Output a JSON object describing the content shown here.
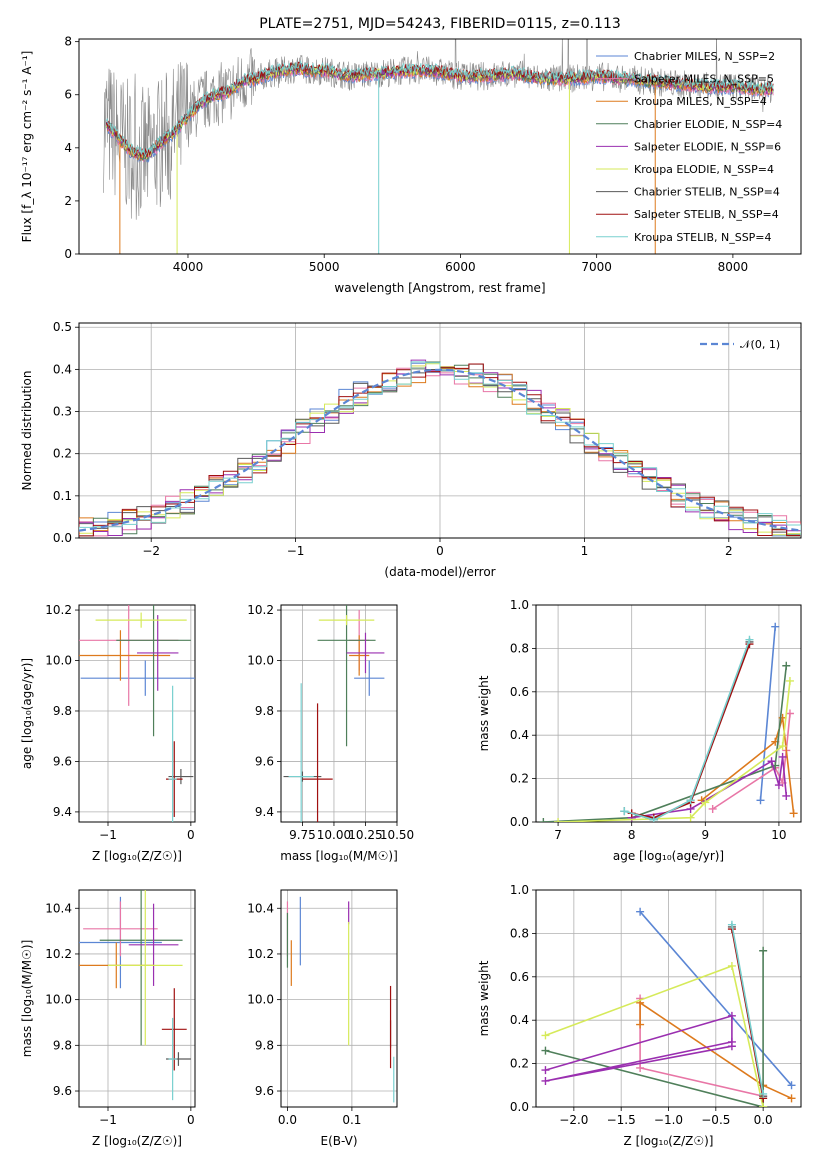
{
  "figure": {
    "title": "PLATE=2751, MJD=54243, FIBERID=0115, z=0.113"
  },
  "colors": {
    "Chabrier MILES": "#5b86d4",
    "Salpeter MILES": "#e876a6",
    "Kroupa MILES": "#dd7a1d",
    "Chabrier ELODIE": "#4f7f5a",
    "Salpeter ELODIE": "#9a2fb0",
    "Kroupa ELODIE": "#d6ea5a",
    "Chabrier STELIB": "#5a5a5a",
    "Salpeter STELIB": "#a01010",
    "Kroupa STELIB": "#78d0cf",
    "data": "#888888",
    "gaussian": "#5b86d4"
  },
  "chart_data": [
    {
      "id": "spectrum",
      "type": "line",
      "xlabel": "wavelength [Angstrom, rest frame]",
      "ylabel": "Flux [f_λ 10⁻¹⁷ erg cm⁻² s⁻¹ A⁻¹]",
      "xlim": [
        3200,
        8500
      ],
      "ylim": [
        0,
        8.1
      ],
      "xticks": [
        4000,
        5000,
        6000,
        7000,
        8000
      ],
      "yticks": [
        0,
        2,
        4,
        6,
        8
      ],
      "grid": false,
      "legend_position": "top-right",
      "legend": [
        "Chabrier MILES, N_SSP=2",
        "Salpeter MILES, N_SSP=5",
        "Kroupa MILES, N_SSP=4",
        "Chabrier ELODIE, N_SSP=4",
        "Salpeter ELODIE, N_SSP=6",
        "Kroupa ELODIE, N_SSP=4",
        "Chabrier STELIB, N_SSP=4",
        "Salpeter STELIB, N_SSP=4",
        "Kroupa STELIB, N_SSP=4"
      ],
      "continuum": {
        "x": [
          3400,
          3500,
          3600,
          3700,
          3800,
          3900,
          4000,
          4100,
          4200,
          4300,
          4400,
          4500,
          4600,
          4700,
          4800,
          4900,
          5000,
          5200,
          5400,
          5600,
          5800,
          6000,
          6200,
          6400,
          6600,
          6800,
          7000,
          7200,
          7400,
          7600,
          7800,
          8000,
          8200,
          8300
        ],
        "y": [
          4.9,
          4.3,
          3.8,
          3.7,
          4.2,
          4.6,
          5.2,
          5.7,
          6.0,
          6.1,
          6.5,
          6.6,
          6.8,
          6.9,
          7.0,
          6.9,
          6.9,
          6.7,
          6.8,
          6.9,
          6.9,
          6.7,
          6.7,
          6.8,
          6.6,
          6.6,
          6.7,
          6.6,
          6.5,
          6.4,
          6.3,
          6.3,
          6.2,
          6.2
        ]
      }
    },
    {
      "id": "residuals",
      "type": "line",
      "xlabel": "(data-model)/error",
      "ylabel": "Normed distribution",
      "xlim": [
        -2.5,
        2.5
      ],
      "ylim": [
        0,
        0.51
      ],
      "xticks": [
        -2,
        -1,
        0,
        1,
        2
      ],
      "yticks": [
        0.0,
        0.1,
        0.2,
        0.3,
        0.4,
        0.5
      ],
      "grid": true,
      "legend_position": "top-right",
      "legend": [
        "𝒩(0, 1)"
      ]
    },
    {
      "id": "age-vs-z",
      "type": "scatter",
      "xlabel": "Z [log₁₀(Z/Z☉)]",
      "ylabel": "age  [log₁₀(age/yr)]",
      "xlim": [
        -1.35,
        0.05
      ],
      "ylim": [
        9.36,
        10.22
      ],
      "xticks": [
        -1,
        0
      ],
      "yticks": [
        9.4,
        9.6,
        9.8,
        10.0,
        10.2
      ],
      "grid": true,
      "points": [
        {
          "series": "Chabrier MILES",
          "x": -0.55,
          "y": 9.93,
          "xerr": 0.78,
          "yerr": 0.07
        },
        {
          "series": "Salpeter MILES",
          "x": -0.75,
          "y": 10.08,
          "xerr": 0.6,
          "yerr": 0.26
        },
        {
          "series": "Kroupa MILES",
          "x": -0.85,
          "y": 10.02,
          "xerr": 0.6,
          "yerr": 0.1
        },
        {
          "series": "Chabrier ELODIE",
          "x": -0.45,
          "y": 10.08,
          "xerr": 0.45,
          "yerr": 0.38
        },
        {
          "series": "Salpeter ELODIE",
          "x": -0.4,
          "y": 10.03,
          "xerr": 0.25,
          "yerr": 0.15
        },
        {
          "series": "Kroupa ELODIE",
          "x": -0.6,
          "y": 10.16,
          "xerr": 0.55,
          "yerr": 0.03
        },
        {
          "series": "Chabrier STELIB",
          "x": -0.12,
          "y": 9.54,
          "xerr": 0.15,
          "yerr": 0.03
        },
        {
          "series": "Salpeter STELIB",
          "x": -0.2,
          "y": 9.53,
          "xerr": 0.1,
          "yerr": 0.15
        },
        {
          "series": "Kroupa STELIB",
          "x": -0.22,
          "y": 9.53,
          "xerr": 0.05,
          "yerr": 0.37
        }
      ]
    },
    {
      "id": "age-vs-mass",
      "type": "scatter",
      "xlabel": "mass [log₁₀(M/M☉)]",
      "ylabel": "",
      "xlim": [
        9.58,
        10.5
      ],
      "ylim": [
        9.36,
        10.22
      ],
      "xticks": [
        9.75,
        10.0,
        10.25,
        10.5
      ],
      "tick_labels": [
        "9.75",
        "10.00",
        "10.25",
        "10.50"
      ],
      "yticks": [
        9.4,
        9.6,
        9.8,
        10.0,
        10.2
      ],
      "grid": true,
      "points": [
        {
          "series": "Chabrier MILES",
          "x": 10.28,
          "y": 9.93,
          "xerr": 0.12,
          "yerr": 0.07
        },
        {
          "series": "Salpeter MILES",
          "x": 10.2,
          "y": 10.08,
          "xerr": 0.08,
          "yerr": 0.12
        },
        {
          "series": "Kroupa MILES",
          "x": 10.2,
          "y": 10.02,
          "xerr": 0.08,
          "yerr": 0.08
        },
        {
          "series": "Chabrier ELODIE",
          "x": 10.1,
          "y": 10.08,
          "xerr": 0.23,
          "yerr": 0.42
        },
        {
          "series": "Salpeter ELODIE",
          "x": 10.25,
          "y": 10.03,
          "xerr": 0.15,
          "yerr": 0.08
        },
        {
          "series": "Kroupa ELODIE",
          "x": 10.1,
          "y": 10.16,
          "xerr": 0.22,
          "yerr": 0.02
        },
        {
          "series": "Chabrier STELIB",
          "x": 9.75,
          "y": 9.54,
          "xerr": 0.15,
          "yerr": 0.02
        },
        {
          "series": "Salpeter STELIB",
          "x": 9.87,
          "y": 9.53,
          "xerr": 0.12,
          "yerr": 0.3
        },
        {
          "series": "Kroupa STELIB",
          "x": 9.74,
          "y": 9.54,
          "xerr": 0.1,
          "yerr": 0.37
        }
      ]
    },
    {
      "id": "mass-weight-vs-age",
      "type": "line",
      "xlabel": "age  [log₁₀(age/yr)]",
      "ylabel": "mass weight",
      "xlim": [
        6.7,
        10.3
      ],
      "ylim": [
        0,
        1.0
      ],
      "xticks": [
        7,
        8,
        9,
        10
      ],
      "yticks": [
        0.0,
        0.2,
        0.4,
        0.6,
        0.8,
        1.0
      ],
      "grid": true,
      "series": [
        {
          "series": "Chabrier MILES",
          "x": [
            9.75,
            9.95
          ],
          "y": [
            0.1,
            0.9
          ]
        },
        {
          "series": "Salpeter MILES",
          "x": [
            9.1,
            9.95,
            10.05,
            10.1,
            10.15
          ],
          "y": [
            0.06,
            0.25,
            0.18,
            0.33,
            0.5
          ]
        },
        {
          "series": "Kroupa MILES",
          "x": [
            8.95,
            9.95,
            10.05,
            10.2
          ],
          "y": [
            0.1,
            0.37,
            0.48,
            0.04
          ]
        },
        {
          "series": "Chabrier ELODIE",
          "x": [
            6.8,
            8.0,
            9.95,
            10.1
          ],
          "y": [
            0.0,
            0.02,
            0.26,
            0.72
          ]
        },
        {
          "series": "Salpeter ELODIE",
          "x": [
            8.0,
            8.8,
            9.9,
            10.0,
            10.05,
            10.1
          ],
          "y": [
            0.02,
            0.06,
            0.28,
            0.17,
            0.3,
            0.12
          ]
        },
        {
          "series": "Kroupa ELODIE",
          "x": [
            7.0,
            8.8,
            9.0,
            10.05,
            10.15
          ],
          "y": [
            0.0,
            0.02,
            0.09,
            0.35,
            0.65
          ]
        },
        {
          "series": "Chabrier STELIB",
          "x": [
            7.9,
            8.3,
            8.8,
            9.6
          ],
          "y": [
            0.05,
            0.01,
            0.1,
            0.83
          ]
        },
        {
          "series": "Salpeter STELIB",
          "x": [
            8.0,
            8.3,
            8.8,
            9.6
          ],
          "y": [
            0.04,
            0.02,
            0.09,
            0.82
          ]
        },
        {
          "series": "Kroupa STELIB",
          "x": [
            7.9,
            8.3,
            8.8,
            9.6
          ],
          "y": [
            0.05,
            0.01,
            0.1,
            0.84
          ]
        }
      ]
    },
    {
      "id": "mass-vs-z",
      "type": "scatter",
      "xlabel": "Z [log₁₀(Z/Z☉)]",
      "ylabel": "mass [log₁₀(M/M☉)]",
      "xlim": [
        -1.35,
        0.05
      ],
      "ylim": [
        9.53,
        10.48
      ],
      "xticks": [
        -1,
        0
      ],
      "yticks": [
        9.6,
        9.8,
        10.0,
        10.2,
        10.4
      ],
      "grid": true,
      "points": [
        {
          "series": "Chabrier MILES",
          "x": -0.85,
          "y": 10.25,
          "xerr": 0.5,
          "yerr": 0.2
        },
        {
          "series": "Salpeter MILES",
          "x": -0.85,
          "y": 10.31,
          "xerr": 0.45,
          "yerr": 0.12
        },
        {
          "series": "Kroupa MILES",
          "x": -0.9,
          "y": 10.15,
          "xerr": 0.45,
          "yerr": 0.1
        },
        {
          "series": "Chabrier ELODIE",
          "x": -0.6,
          "y": 10.26,
          "xerr": 0.5,
          "yerr": 0.46
        },
        {
          "series": "Salpeter ELODIE",
          "x": -0.45,
          "y": 10.24,
          "xerr": 0.3,
          "yerr": 0.18
        },
        {
          "series": "Kroupa ELODIE",
          "x": -0.55,
          "y": 10.15,
          "xerr": 0.45,
          "yerr": 0.35
        },
        {
          "series": "Chabrier STELIB",
          "x": -0.15,
          "y": 9.74,
          "xerr": 0.15,
          "yerr": 0.03
        },
        {
          "series": "Salpeter STELIB",
          "x": -0.2,
          "y": 9.87,
          "xerr": 0.15,
          "yerr": 0.18
        },
        {
          "series": "Kroupa STELIB",
          "x": -0.22,
          "y": 9.74,
          "xerr": 0.05,
          "yerr": 0.18
        }
      ]
    },
    {
      "id": "mass-vs-ebv",
      "type": "scatter",
      "xlabel": "E(B-V)",
      "ylabel": "",
      "xlim": [
        -0.01,
        0.17
      ],
      "ylim": [
        9.53,
        10.48
      ],
      "xticks": [
        0.0,
        0.1
      ],
      "tick_labels": [
        "0.0",
        "0.1"
      ],
      "yticks": [
        9.6,
        9.8,
        10.0,
        10.2,
        10.4
      ],
      "grid": true,
      "points": [
        {
          "series": "Chabrier MILES",
          "x": 0.02,
          "y": 10.3,
          "xerr": 0.0,
          "yerr": 0.15
        },
        {
          "series": "Salpeter MILES",
          "x": 0.0,
          "y": 10.31,
          "xerr": 0.0,
          "yerr": 0.12
        },
        {
          "series": "Kroupa MILES",
          "x": 0.006,
          "y": 10.16,
          "xerr": 0.0,
          "yerr": 0.1
        },
        {
          "series": "Chabrier ELODIE",
          "x": 0.0,
          "y": 10.26,
          "xerr": 0.0,
          "yerr": 0.12
        },
        {
          "series": "Salpeter ELODIE",
          "x": 0.095,
          "y": 10.38,
          "xerr": 0.0,
          "yerr": 0.05
        },
        {
          "series": "Kroupa ELODIE",
          "x": 0.095,
          "y": 10.07,
          "xerr": 0.0,
          "yerr": 0.27
        },
        {
          "series": "Chabrier STELIB",
          "x": 0.16,
          "y": 9.85,
          "xerr": 0.0,
          "yerr": 0.06
        },
        {
          "series": "Salpeter STELIB",
          "x": 0.16,
          "y": 9.88,
          "xerr": 0.0,
          "yerr": 0.18
        },
        {
          "series": "Kroupa STELIB",
          "x": 0.165,
          "y": 9.65,
          "xerr": 0.0,
          "yerr": 0.1
        }
      ]
    },
    {
      "id": "mass-weight-vs-z",
      "type": "line",
      "xlabel": "Z [log₁₀(Z/Z☉)]",
      "ylabel": "mass weight",
      "xlim": [
        -2.4,
        0.4
      ],
      "ylim": [
        0,
        1.0
      ],
      "xticks": [
        -2.0,
        -1.5,
        -1.0,
        -0.5,
        0.0
      ],
      "tick_labels": [
        "−2.0",
        "−1.5",
        "−1.0",
        "−0.5",
        "0.0"
      ],
      "yticks": [
        0.0,
        0.2,
        0.4,
        0.6,
        0.8,
        1.0
      ],
      "grid": true,
      "series": [
        {
          "series": "Chabrier MILES",
          "x": [
            -1.3,
            0.3
          ],
          "y": [
            0.9,
            0.1
          ]
        },
        {
          "series": "Salpeter MILES",
          "x": [
            -1.3,
            -1.3,
            0.0
          ],
          "y": [
            0.5,
            0.18,
            0.05
          ]
        },
        {
          "series": "Kroupa MILES",
          "x": [
            -1.3,
            -1.3,
            0.0,
            0.3
          ],
          "y": [
            0.38,
            0.48,
            0.1,
            0.04
          ]
        },
        {
          "series": "Chabrier ELODIE",
          "x": [
            -2.3,
            0.0,
            0.0
          ],
          "y": [
            0.26,
            0.0,
            0.72
          ]
        },
        {
          "series": "Salpeter ELODIE",
          "x": [
            -2.3,
            -0.33,
            -0.33,
            -2.3,
            -0.33
          ],
          "y": [
            0.17,
            0.42,
            0.3,
            0.12,
            0.28
          ]
        },
        {
          "series": "Kroupa ELODIE",
          "x": [
            -2.3,
            -0.33,
            0.0
          ],
          "y": [
            0.33,
            0.65,
            0.0
          ]
        },
        {
          "series": "Chabrier STELIB",
          "x": [
            -0.33,
            0.0
          ],
          "y": [
            0.83,
            0.05
          ]
        },
        {
          "series": "Salpeter STELIB",
          "x": [
            -0.33,
            0.0
          ],
          "y": [
            0.82,
            0.04
          ]
        },
        {
          "series": "Kroupa STELIB",
          "x": [
            -0.33,
            0.0
          ],
          "y": [
            0.84,
            0.06
          ]
        }
      ]
    }
  ]
}
